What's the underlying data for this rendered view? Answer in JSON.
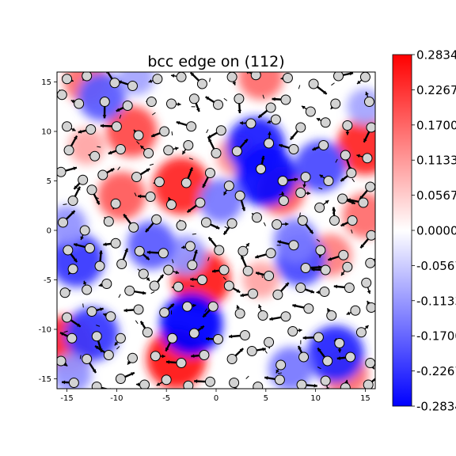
{
  "chart_data": {
    "type": "heatmap",
    "title": "bcc edge on (112)",
    "xlim": [
      -16,
      16
    ],
    "ylim": [
      -16,
      16
    ],
    "x_ticks": [
      -15,
      -10,
      -5,
      0,
      5,
      10,
      15
    ],
    "y_ticks": [
      -15,
      -10,
      -5,
      0,
      5,
      10,
      15
    ],
    "colormap": "bwr",
    "colors": {
      "low": "#0000ff",
      "mid": "#ffffff",
      "high": "#ff0000",
      "atom_face": "#d3d3d3",
      "atom_edge": "#000000",
      "arrow": "#000000"
    },
    "colorbar": {
      "vmin": -0.2834,
      "vmax": 0.2834,
      "tick_values": [
        0.2834,
        0.2267,
        0.17,
        0.1133,
        0.0567,
        0.0,
        -0.0567,
        -0.1133,
        -0.17,
        -0.2267,
        -0.2834
      ],
      "tick_labels": [
        "0.2834",
        "0.2267",
        "0.1700",
        "0.1133",
        "0.0567",
        "0.0000",
        "-0.0567",
        "-0.1133",
        "-0.1700",
        "-0.2267",
        "-0.2834"
      ]
    },
    "field_hotspots": [
      {
        "x": -8.5,
        "y": 10.0,
        "value": 0.2
      },
      {
        "x": -3.5,
        "y": 4.5,
        "value": 0.24
      },
      {
        "x": -9.5,
        "y": 3.5,
        "value": 0.18
      },
      {
        "x": -1.5,
        "y": -5.0,
        "value": 0.25
      },
      {
        "x": -4.0,
        "y": -13.0,
        "value": 0.26
      },
      {
        "x": -15.0,
        "y": -11.5,
        "value": 0.24
      },
      {
        "x": -13.0,
        "y": 15.0,
        "value": 0.16
      },
      {
        "x": 4.5,
        "y": 15.5,
        "value": 0.16
      },
      {
        "x": 6.5,
        "y": 4.0,
        "value": 0.18
      },
      {
        "x": 2.0,
        "y": 7.5,
        "value": 0.12
      },
      {
        "x": 15.0,
        "y": 8.5,
        "value": 0.24
      },
      {
        "x": 15.0,
        "y": 1.5,
        "value": 0.16
      },
      {
        "x": 11.5,
        "y": -2.5,
        "value": 0.14
      },
      {
        "x": 13.0,
        "y": -14.5,
        "value": 0.16
      },
      {
        "x": 4.5,
        "y": -5.0,
        "value": 0.1
      },
      {
        "x": -13.0,
        "y": 8.5,
        "value": 0.1
      },
      {
        "x": -11.5,
        "y": 13.5,
        "value": -0.18
      },
      {
        "x": -8.0,
        "y": 15.5,
        "value": -0.1
      },
      {
        "x": 4.0,
        "y": 8.5,
        "value": -0.25
      },
      {
        "x": 5.0,
        "y": 5.5,
        "value": -0.27
      },
      {
        "x": 0.5,
        "y": 3.0,
        "value": -0.15
      },
      {
        "x": 10.5,
        "y": 6.5,
        "value": -0.2
      },
      {
        "x": 15.0,
        "y": 12.5,
        "value": -0.1
      },
      {
        "x": -14.0,
        "y": -3.0,
        "value": -0.22
      },
      {
        "x": -12.5,
        "y": -10.5,
        "value": -0.22
      },
      {
        "x": -15.0,
        "y": 0.5,
        "value": -0.12
      },
      {
        "x": -2.5,
        "y": -9.5,
        "value": -0.28
      },
      {
        "x": -3.0,
        "y": -2.5,
        "value": -0.12
      },
      {
        "x": 8.5,
        "y": -3.0,
        "value": -0.2
      },
      {
        "x": 8.0,
        "y": -1.0,
        "value": -0.15
      },
      {
        "x": 12.0,
        "y": -12.5,
        "value": -0.24
      },
      {
        "x": 7.5,
        "y": -14.0,
        "value": -0.15
      },
      {
        "x": -6.5,
        "y": -1.5,
        "value": -0.18
      },
      {
        "x": -14.5,
        "y": -14.5,
        "value": -0.12
      }
    ],
    "atoms": [
      [
        -15.0,
        15.3
      ],
      [
        -13.0,
        15.6
      ],
      [
        -10.2,
        14.9
      ],
      [
        -8.4,
        14.6
      ],
      [
        -5.9,
        15.3
      ],
      [
        -3.5,
        15.5
      ],
      [
        -1.4,
        14.8
      ],
      [
        1.6,
        15.5
      ],
      [
        4.0,
        15.7
      ],
      [
        7.2,
        15.4
      ],
      [
        9.8,
        14.8
      ],
      [
        12.3,
        15.6
      ],
      [
        15.0,
        15.5
      ],
      [
        -15.5,
        13.7
      ],
      [
        -13.8,
        12.8
      ],
      [
        -11.2,
        13.0
      ],
      [
        -8.9,
        12.6
      ],
      [
        -6.5,
        13.0
      ],
      [
        -4.5,
        12.8
      ],
      [
        -2.2,
        13.3
      ],
      [
        0.2,
        12.7
      ],
      [
        2.3,
        13.3
      ],
      [
        5.5,
        12.4
      ],
      [
        7.0,
        13.2
      ],
      [
        9.5,
        12.0
      ],
      [
        12.0,
        12.8
      ],
      [
        15.4,
        13.0
      ],
      [
        -15.0,
        10.5
      ],
      [
        -12.6,
        10.2
      ],
      [
        -10.0,
        10.5
      ],
      [
        -7.8,
        9.6
      ],
      [
        -5.2,
        10.0
      ],
      [
        -2.5,
        10.5
      ],
      [
        0.5,
        10.1
      ],
      [
        3.5,
        10.8
      ],
      [
        6.0,
        11.2
      ],
      [
        8.5,
        10.4
      ],
      [
        11.0,
        10.9
      ],
      [
        13.2,
        10.6
      ],
      [
        15.6,
        10.4
      ],
      [
        -14.8,
        8.1
      ],
      [
        -12.2,
        7.5
      ],
      [
        -9.6,
        8.2
      ],
      [
        -6.8,
        7.8
      ],
      [
        -4.8,
        8.1
      ],
      [
        -2.8,
        8.6
      ],
      [
        0.0,
        7.8
      ],
      [
        2.1,
        8.0
      ],
      [
        5.3,
        8.8
      ],
      [
        7.8,
        8.2
      ],
      [
        10.8,
        8.6
      ],
      [
        13.0,
        7.6
      ],
      [
        15.2,
        7.3
      ],
      [
        -15.6,
        5.9
      ],
      [
        -13.4,
        5.1
      ],
      [
        -11.4,
        5.6
      ],
      [
        -8.0,
        5.4
      ],
      [
        -5.7,
        4.9
      ],
      [
        -3.0,
        4.8
      ],
      [
        -0.6,
        5.8
      ],
      [
        1.3,
        4.5
      ],
      [
        4.5,
        6.2
      ],
      [
        6.7,
        5.0
      ],
      [
        9.0,
        5.4
      ],
      [
        11.3,
        5.0
      ],
      [
        13.6,
        5.8
      ],
      [
        15.5,
        4.4
      ],
      [
        -14.4,
        3.0
      ],
      [
        -12.5,
        4.1
      ],
      [
        -10.1,
        2.7
      ],
      [
        -6.6,
        3.4
      ],
      [
        -4.5,
        2.6
      ],
      [
        -1.6,
        2.8
      ],
      [
        2.4,
        3.5
      ],
      [
        6.8,
        3.0
      ],
      [
        8.5,
        3.8
      ],
      [
        10.4,
        2.3
      ],
      [
        12.7,
        3.2
      ],
      [
        14.8,
        2.8
      ],
      [
        -15.4,
        0.8
      ],
      [
        -13.2,
        0.0
      ],
      [
        -10.8,
        0.9
      ],
      [
        -8.3,
        0.3
      ],
      [
        -6.0,
        1.1
      ],
      [
        -3.5,
        0.5
      ],
      [
        -1.0,
        0.8
      ],
      [
        1.6,
        0.7
      ],
      [
        4.1,
        1.3
      ],
      [
        6.1,
        0.6
      ],
      [
        8.7,
        1.0
      ],
      [
        11.9,
        1.0
      ],
      [
        13.7,
        1.0
      ],
      [
        15.6,
        -0.5
      ],
      [
        -14.9,
        -2.0
      ],
      [
        -12.7,
        -1.8
      ],
      [
        -10.1,
        -1.3
      ],
      [
        -7.7,
        -2.1
      ],
      [
        -5.3,
        -2.3
      ],
      [
        -2.6,
        -1.6
      ],
      [
        0.3,
        -2.0
      ],
      [
        2.7,
        -2.1
      ],
      [
        5.5,
        -2.3
      ],
      [
        7.8,
        -1.5
      ],
      [
        10.5,
        -2.0
      ],
      [
        12.8,
        -2.5
      ],
      [
        15.5,
        -3.3
      ],
      [
        -14.4,
        -3.9
      ],
      [
        -11.7,
        -3.6
      ],
      [
        -9.5,
        -3.4
      ],
      [
        -7.3,
        -4.4
      ],
      [
        -4.8,
        -4.0
      ],
      [
        -2.4,
        -3.5
      ],
      [
        0.8,
        -4.0
      ],
      [
        3.2,
        -4.1
      ],
      [
        5.3,
        -4.6
      ],
      [
        9.0,
        -3.8
      ],
      [
        11.0,
        -4.0
      ],
      [
        13.2,
        -3.7
      ],
      [
        15.1,
        -5.3
      ],
      [
        -15.2,
        -6.3
      ],
      [
        -13.0,
        -6.0
      ],
      [
        -11.0,
        -5.4
      ],
      [
        -8.7,
        -6.1
      ],
      [
        -6.2,
        -5.6
      ],
      [
        -3.8,
        -5.7
      ],
      [
        -1.4,
        -5.0
      ],
      [
        1.3,
        -5.6
      ],
      [
        3.7,
        -6.4
      ],
      [
        6.2,
        -6.5
      ],
      [
        8.5,
        -5.8
      ],
      [
        10.9,
        -6.2
      ],
      [
        13.4,
        -5.8
      ],
      [
        -15.0,
        -8.8
      ],
      [
        -12.5,
        -8.2
      ],
      [
        -10.6,
        -8.7
      ],
      [
        -7.8,
        -8.0
      ],
      [
        -5.2,
        -8.3
      ],
      [
        -2.9,
        -7.7
      ],
      [
        -0.3,
        -7.7
      ],
      [
        2.4,
        -8.4
      ],
      [
        4.7,
        -8.6
      ],
      [
        7.0,
        -8.7
      ],
      [
        9.3,
        -7.9
      ],
      [
        11.6,
        -8.6
      ],
      [
        14.0,
        -8.1
      ],
      [
        15.6,
        -7.8
      ],
      [
        -14.5,
        -10.9
      ],
      [
        -12.0,
        -10.7
      ],
      [
        -9.6,
        -10.9
      ],
      [
        -6.9,
        -10.3
      ],
      [
        -4.4,
        -10.9
      ],
      [
        -2.2,
        -10.4
      ],
      [
        0.2,
        -11.0
      ],
      [
        2.9,
        -10.6
      ],
      [
        5.3,
        -11.3
      ],
      [
        7.7,
        -10.2
      ],
      [
        10.3,
        -10.8
      ],
      [
        12.4,
        -11.4
      ],
      [
        14.6,
        -10.3
      ],
      [
        -15.6,
        -13.2
      ],
      [
        -13.0,
        -13.0
      ],
      [
        -10.8,
        -12.6
      ],
      [
        -8.4,
        -12.9
      ],
      [
        -6.1,
        -12.7
      ],
      [
        -3.5,
        -13.4
      ],
      [
        -1.2,
        -12.6
      ],
      [
        1.6,
        -13.0
      ],
      [
        3.6,
        -12.2
      ],
      [
        6.5,
        -13.6
      ],
      [
        8.8,
        -12.8
      ],
      [
        11.2,
        -13.2
      ],
      [
        13.5,
        -12.8
      ],
      [
        15.5,
        -13.4
      ],
      [
        -14.3,
        -15.4
      ],
      [
        -12.0,
        -15.8
      ],
      [
        -9.6,
        -15.0
      ],
      [
        -7.2,
        -15.6
      ],
      [
        -5.0,
        -15.1
      ],
      [
        -2.8,
        -15.7
      ],
      [
        -0.6,
        -15.3
      ],
      [
        1.8,
        -15.4
      ],
      [
        4.2,
        -15.8
      ],
      [
        6.4,
        -15.1
      ],
      [
        8.6,
        -15.6
      ],
      [
        11.0,
        -15.2
      ],
      [
        13.0,
        -15.9
      ],
      [
        15.3,
        -15.6
      ]
    ]
  }
}
